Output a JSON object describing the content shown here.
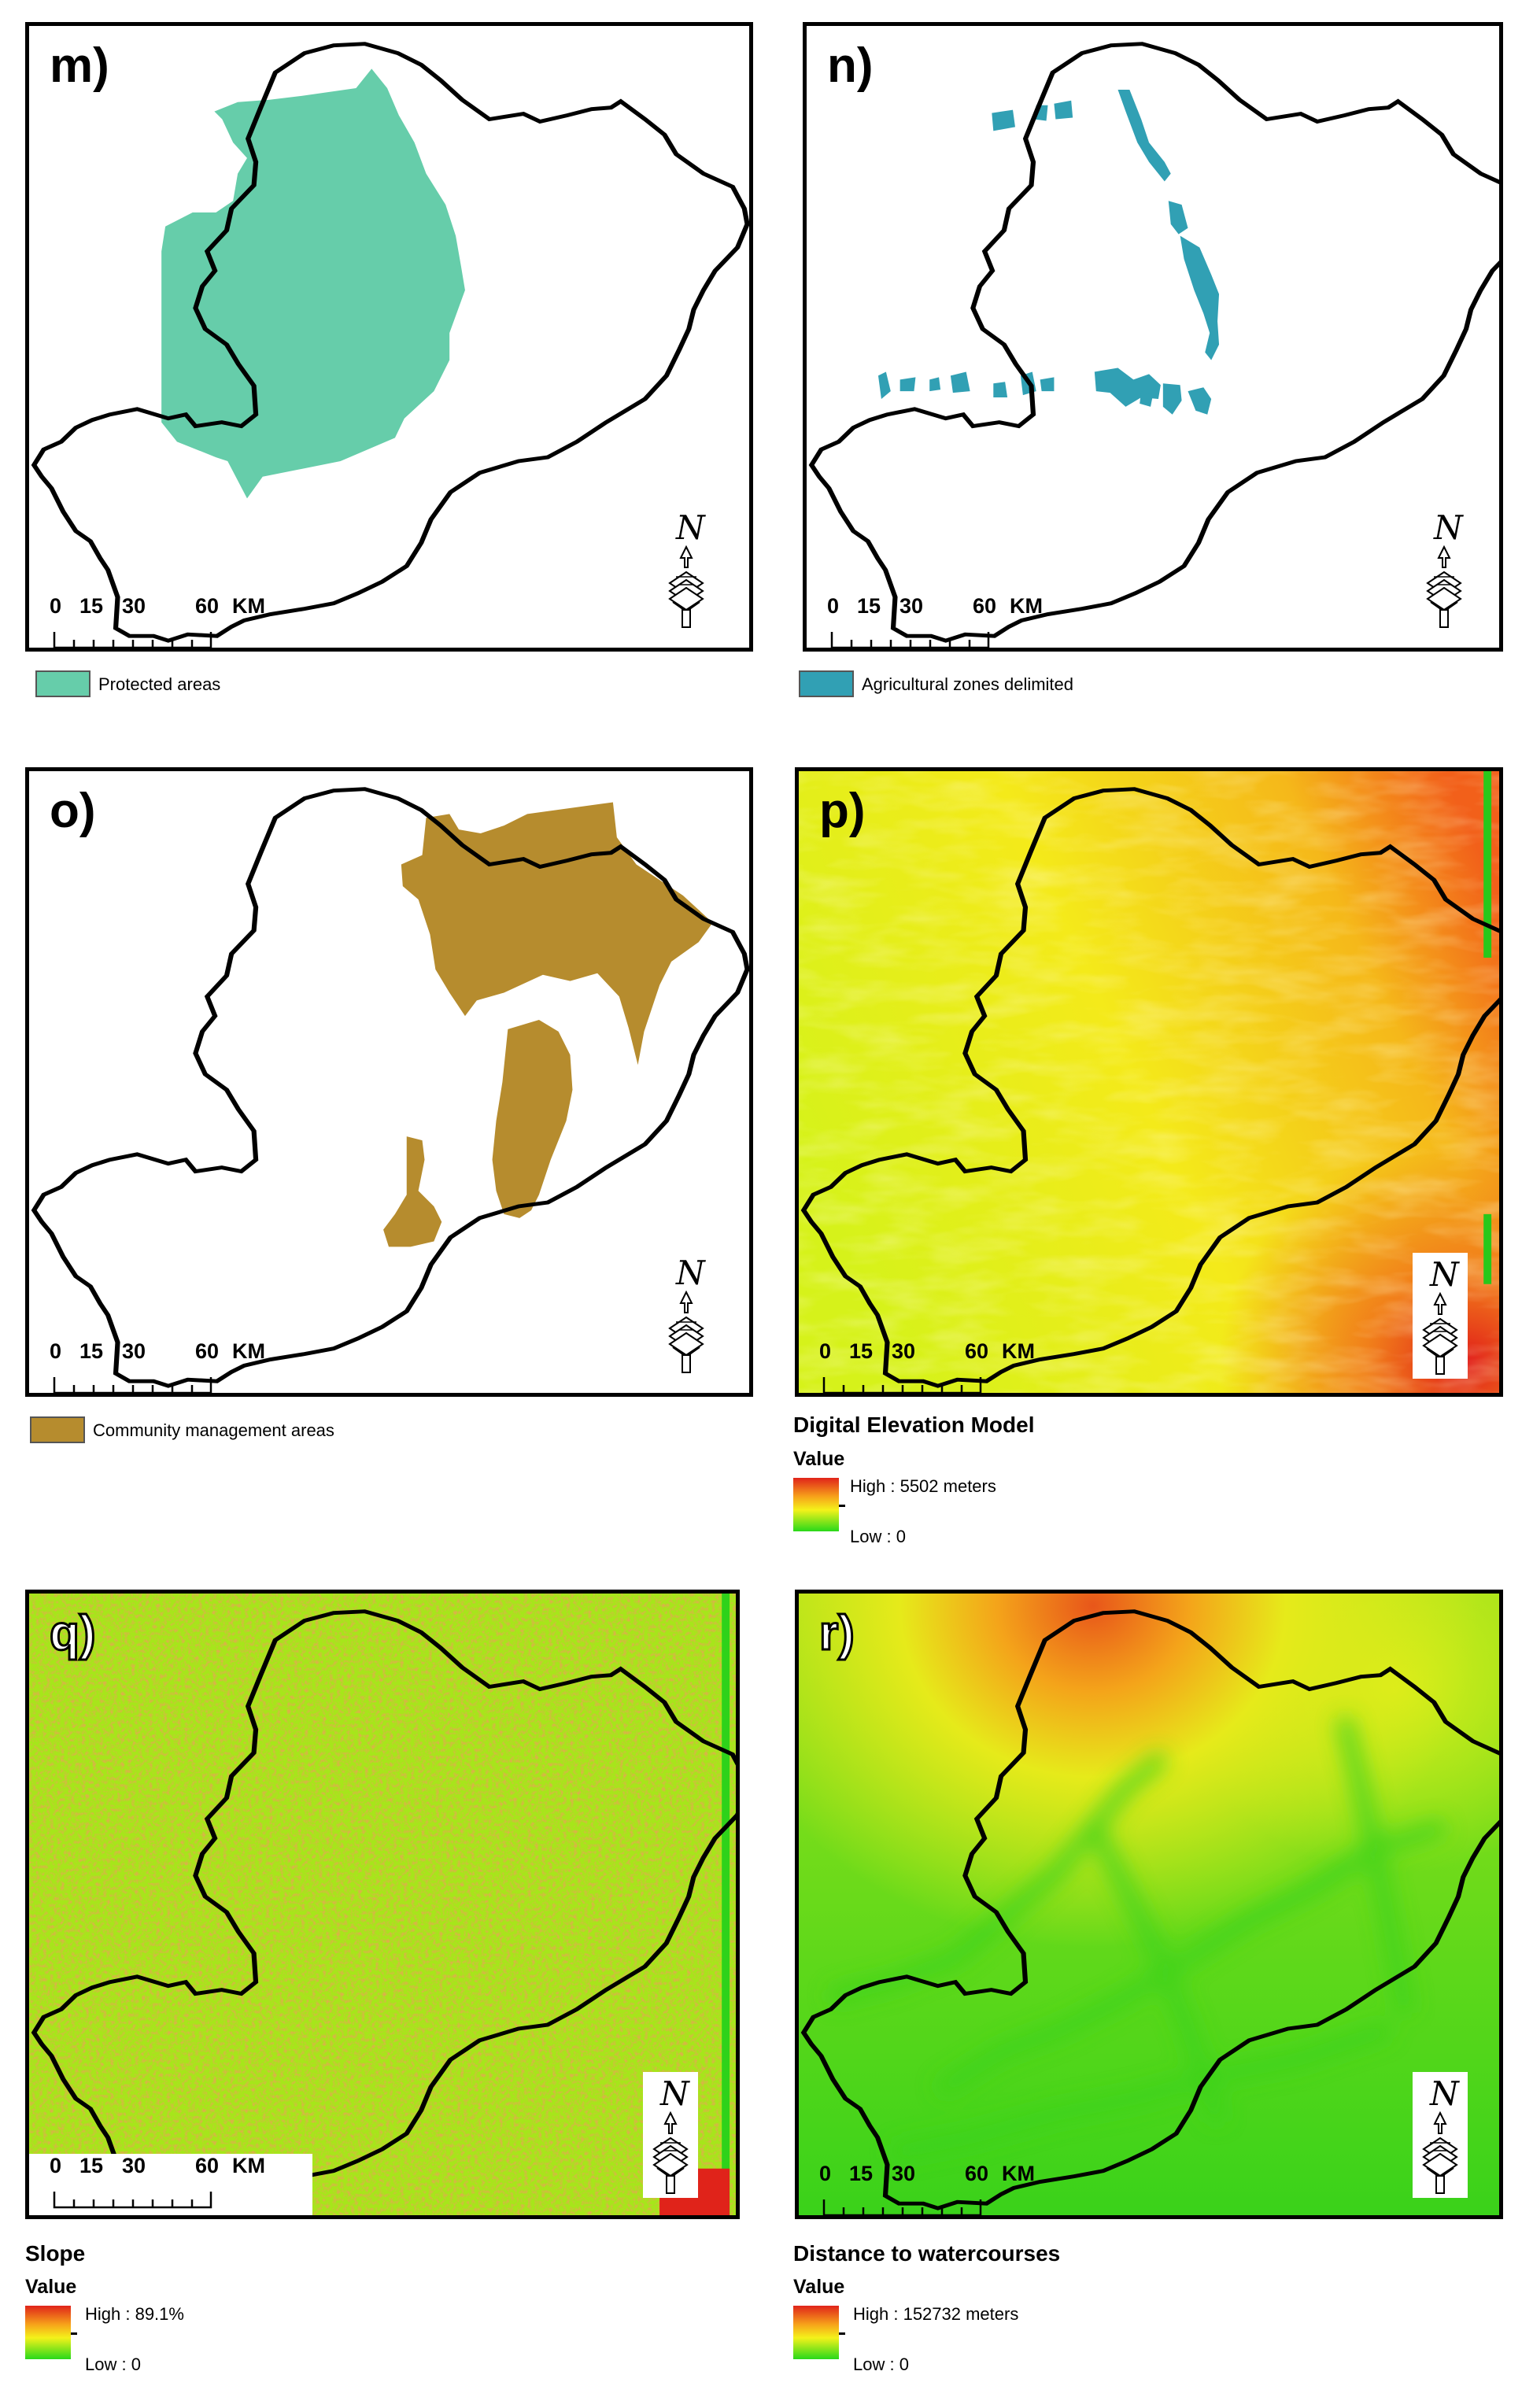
{
  "panels": {
    "m": {
      "label": "m)",
      "scale": [
        "0",
        "15",
        "30",
        "60",
        "KM"
      ],
      "legend": "Protected areas",
      "legend_color": "#66cdaa"
    },
    "n": {
      "label": "n)",
      "scale": [
        "0",
        "15",
        "30",
        "60",
        "KM"
      ],
      "legend": "Agricultural zones delimited",
      "legend_color": "#31a0b4"
    },
    "o": {
      "label": "o)",
      "scale": [
        "0",
        "15",
        "30",
        "60",
        "KM"
      ],
      "legend": "Community management areas",
      "legend_color": "#b68c2e"
    },
    "p": {
      "label": "p)",
      "scale": [
        "0",
        "15",
        "30",
        "60",
        "KM"
      ],
      "title": "Digital Elevation Model",
      "value_label": "Value",
      "high": "High : 5502 meters",
      "low": "Low : 0"
    },
    "q": {
      "label": "q)",
      "scale": [
        "0",
        "15",
        "30",
        "60",
        "KM"
      ],
      "title": "Slope",
      "value_label": "Value",
      "high": "High : 89.1%",
      "low": "Low : 0"
    },
    "r": {
      "label": "r)",
      "scale": [
        "0",
        "15",
        "30",
        "60",
        "KM"
      ],
      "title": "Distance to watercourses",
      "value_label": "Value",
      "high": "High : 152732 meters",
      "low": "Low : 0"
    }
  },
  "north_letter": "N",
  "ramp_colors": {
    "high": "#e0231a",
    "mid": "#f4f21a",
    "low": "#28d91a"
  }
}
